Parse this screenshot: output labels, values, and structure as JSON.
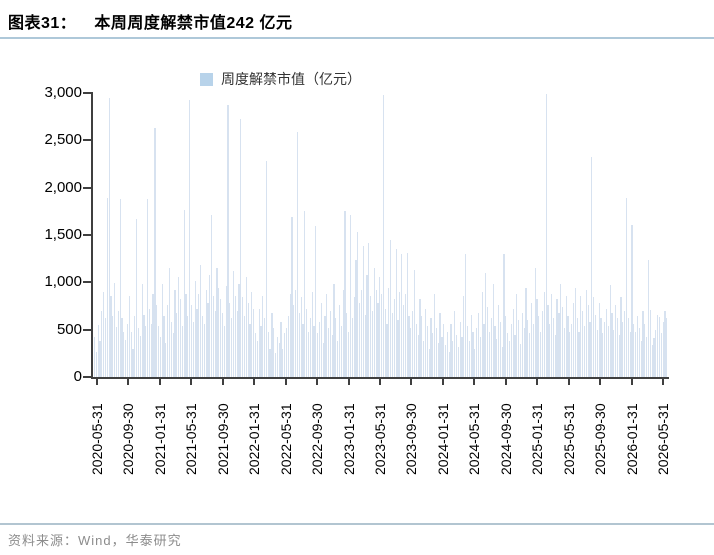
{
  "title": {
    "prefix": "图表31：",
    "text": "本周周度解禁市值242 亿元"
  },
  "legend": {
    "label": "周度解禁市值（亿元）",
    "swatch_color": "#b8d3ea"
  },
  "footer": {
    "source": "资料来源：Wind，华泰研究"
  },
  "colors": {
    "bar": "#d7e2f0",
    "axis": "#3f3f3f",
    "rule": "#aec8d9"
  },
  "chart_data": {
    "type": "bar",
    "title": "周度解禁市值（亿元）",
    "xlabel": "",
    "ylabel": "",
    "ylim": [
      0,
      3000
    ],
    "grid": false,
    "legend_position": "top-center",
    "y_ticks": [
      "3,000",
      "2,500",
      "2,000",
      "1,500",
      "1,000",
      "500",
      "0"
    ],
    "x_ticks": [
      "2020-05-31",
      "2020-09-30",
      "2021-01-31",
      "2021-05-31",
      "2021-09-30",
      "2022-01-31",
      "2022-05-31",
      "2022-09-30",
      "2023-01-31",
      "2023-05-31",
      "2023-09-30",
      "2024-01-31",
      "2024-05-31",
      "2024-09-30",
      "2025-01-31",
      "2025-05-31",
      "2025-09-30",
      "2026-01-31",
      "2026-05-31"
    ],
    "x_frequency": "weekly",
    "values": [
      420,
      260,
      550,
      380,
      700,
      900,
      620,
      1890,
      2950,
      860,
      640,
      990,
      530,
      700,
      1880,
      620,
      480,
      390,
      560,
      860,
      480,
      300,
      640,
      1670,
      520,
      430,
      980,
      660,
      540,
      1880,
      720,
      560,
      880,
      2630,
      760,
      540,
      420,
      980,
      640,
      360,
      760,
      1150,
      580,
      470,
      920,
      680,
      1060,
      820,
      540,
      1760,
      880,
      640,
      2930,
      760,
      580,
      1010,
      720,
      880,
      1180,
      640,
      560,
      920,
      780,
      1080,
      1710,
      860,
      700,
      1150,
      940,
      820,
      680,
      540,
      960,
      2870,
      780,
      620,
      1120,
      860,
      700,
      980,
      2730,
      840,
      640,
      1060,
      780,
      560,
      900,
      720,
      460,
      380,
      720,
      540,
      860,
      620,
      2280,
      480,
      300,
      680,
      520,
      250,
      420,
      360,
      580,
      300,
      460,
      520,
      640,
      880,
      1690,
      760,
      920,
      2590,
      680,
      840,
      560,
      1750,
      720,
      480,
      620,
      900,
      540,
      1600,
      460,
      580,
      780,
      360,
      640,
      880,
      520,
      700,
      440,
      980,
      620,
      380,
      760,
      540,
      920,
      1750,
      680,
      480,
      1710,
      620,
      840,
      1240,
      1530,
      780,
      920,
      1380,
      660,
      1080,
      1420,
      860,
      700,
      1150,
      920,
      780,
      1060,
      880,
      2980,
      720,
      560,
      940,
      1450,
      680,
      820,
      1350,
      600,
      900,
      1300,
      760,
      880,
      1310,
      640,
      520,
      700,
      1130,
      560,
      440,
      820,
      640,
      380,
      720,
      540,
      300,
      620,
      460,
      880,
      520,
      360,
      680,
      420,
      560,
      340,
      480,
      260,
      560,
      380,
      700,
      440,
      320,
      580,
      420,
      860,
      1300,
      540,
      380,
      660,
      480,
      300,
      520,
      680,
      420,
      900,
      560,
      1100,
      740,
      480,
      620,
      980,
      540,
      400,
      760,
      580,
      320,
      1300,
      640,
      460,
      380,
      560,
      720,
      440,
      880,
      600,
      350,
      680,
      520,
      940,
      600,
      460,
      780,
      560,
      1150,
      820,
      640,
      480,
      700,
      900,
      2990,
      760,
      560,
      880,
      620,
      440,
      820,
      680,
      980,
      740,
      520,
      860,
      640,
      480,
      560,
      780,
      940,
      620,
      480,
      860,
      700,
      540,
      920,
      760,
      580,
      2320,
      840,
      660,
      500,
      780,
      620,
      460,
      580,
      720,
      540,
      970,
      680,
      500,
      760,
      620,
      440,
      840,
      580,
      700,
      1890,
      620,
      480,
      1610,
      560,
      480,
      640,
      520,
      380,
      700,
      560,
      420,
      1240,
      710,
      340,
      410,
      500,
      660,
      630,
      460,
      580,
      700,
      620
    ]
  }
}
